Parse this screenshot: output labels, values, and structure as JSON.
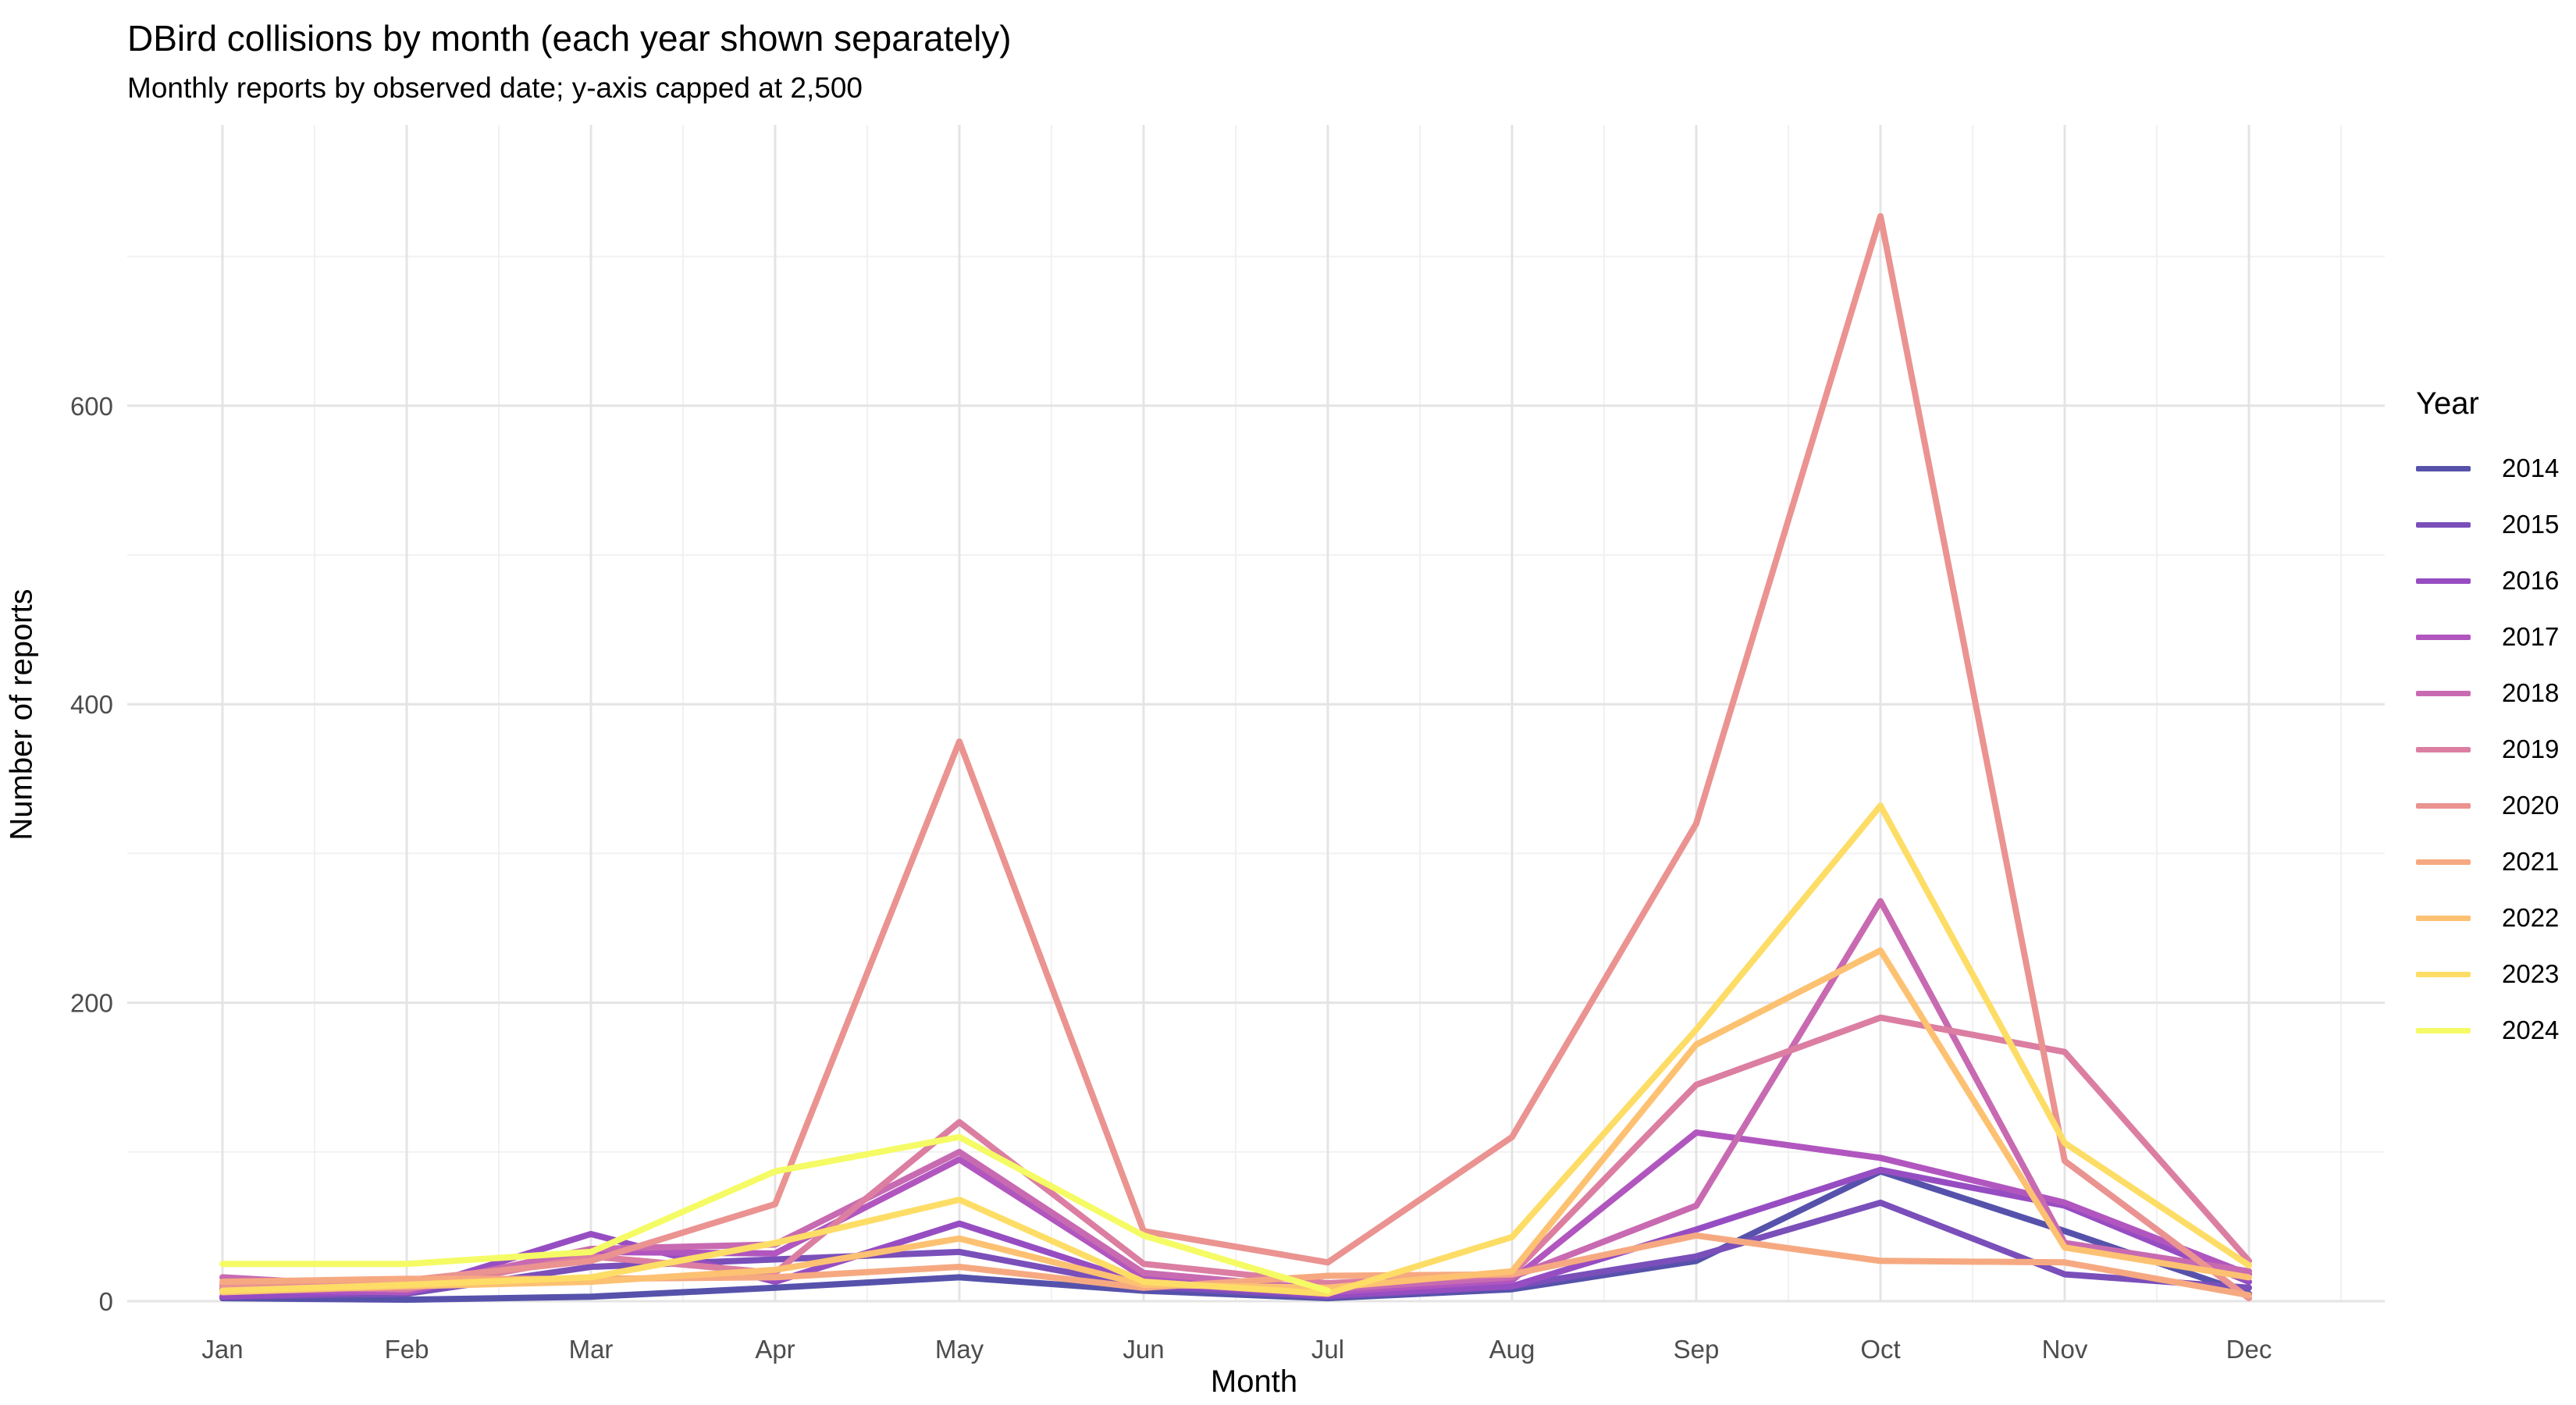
{
  "header": {
    "title": "DBird collisions by month (each year shown separately)",
    "subtitle": "Monthly reports by observed date; y-axis capped at 2,500"
  },
  "legend": {
    "title": "Year"
  },
  "chart_data": {
    "type": "line",
    "title": "DBird collisions by month (each year shown separately)",
    "subtitle": "Monthly reports by observed date; y-axis capped at 2,500",
    "xlabel": "Month",
    "ylabel": "Number of reports",
    "categories": [
      "Jan",
      "Feb",
      "Mar",
      "Apr",
      "May",
      "Jun",
      "Jul",
      "Aug",
      "Sep",
      "Oct",
      "Nov",
      "Dec"
    ],
    "yticks": [
      0,
      200,
      400,
      600
    ],
    "yminor": [
      100,
      300,
      500,
      700
    ],
    "ylim": [
      0,
      790
    ],
    "grid": "on",
    "legend_position": "right",
    "legend_title": "Year",
    "series": [
      {
        "name": "2014",
        "color": "#5652AB",
        "values": [
          2,
          1,
          3,
          9,
          16,
          7,
          2,
          8,
          27,
          87,
          47,
          5
        ]
      },
      {
        "name": "2015",
        "color": "#7A4FBA",
        "values": [
          3,
          5,
          23,
          28,
          33,
          10,
          3,
          10,
          30,
          66,
          18,
          9
        ]
      },
      {
        "name": "2016",
        "color": "#974DC2",
        "values": [
          3,
          7,
          45,
          13,
          52,
          12,
          4,
          10,
          48,
          88,
          64,
          13
        ]
      },
      {
        "name": "2017",
        "color": "#B156BF",
        "values": [
          8,
          6,
          33,
          32,
          95,
          16,
          6,
          14,
          113,
          96,
          66,
          18
        ]
      },
      {
        "name": "2018",
        "color": "#C86AB1",
        "values": [
          16,
          9,
          35,
          38,
          100,
          19,
          8,
          16,
          64,
          268,
          39,
          20
        ]
      },
      {
        "name": "2019",
        "color": "#DB7EA1",
        "values": [
          10,
          8,
          30,
          19,
          120,
          25,
          12,
          18,
          145,
          190,
          167,
          27
        ]
      },
      {
        "name": "2020",
        "color": "#EA9391",
        "values": [
          11,
          14,
          27,
          65,
          375,
          47,
          26,
          110,
          320,
          727,
          94,
          2
        ]
      },
      {
        "name": "2021",
        "color": "#F6A981",
        "values": [
          13,
          15,
          15,
          16,
          23,
          9,
          17,
          18,
          44,
          27,
          26,
          4
        ]
      },
      {
        "name": "2022",
        "color": "#FDC172",
        "values": [
          6,
          10,
          13,
          21,
          42,
          11,
          9,
          20,
          172,
          235,
          36,
          16
        ]
      },
      {
        "name": "2023",
        "color": "#FDDD66",
        "values": [
          7,
          11,
          16,
          39,
          68,
          13,
          5,
          43,
          182,
          332,
          106,
          24
        ]
      },
      {
        "name": "2024",
        "color": "#F5FB64",
        "values": [
          25,
          25,
          33,
          87,
          110,
          44,
          7,
          null,
          null,
          null,
          null,
          null
        ]
      }
    ],
    "style": {
      "line_width": 8,
      "grid_major_color": "#e4e4e4",
      "grid_minor_color": "#f1f1f1",
      "tick_label_color": "#4d4d4d",
      "background": "#ffffff"
    }
  }
}
